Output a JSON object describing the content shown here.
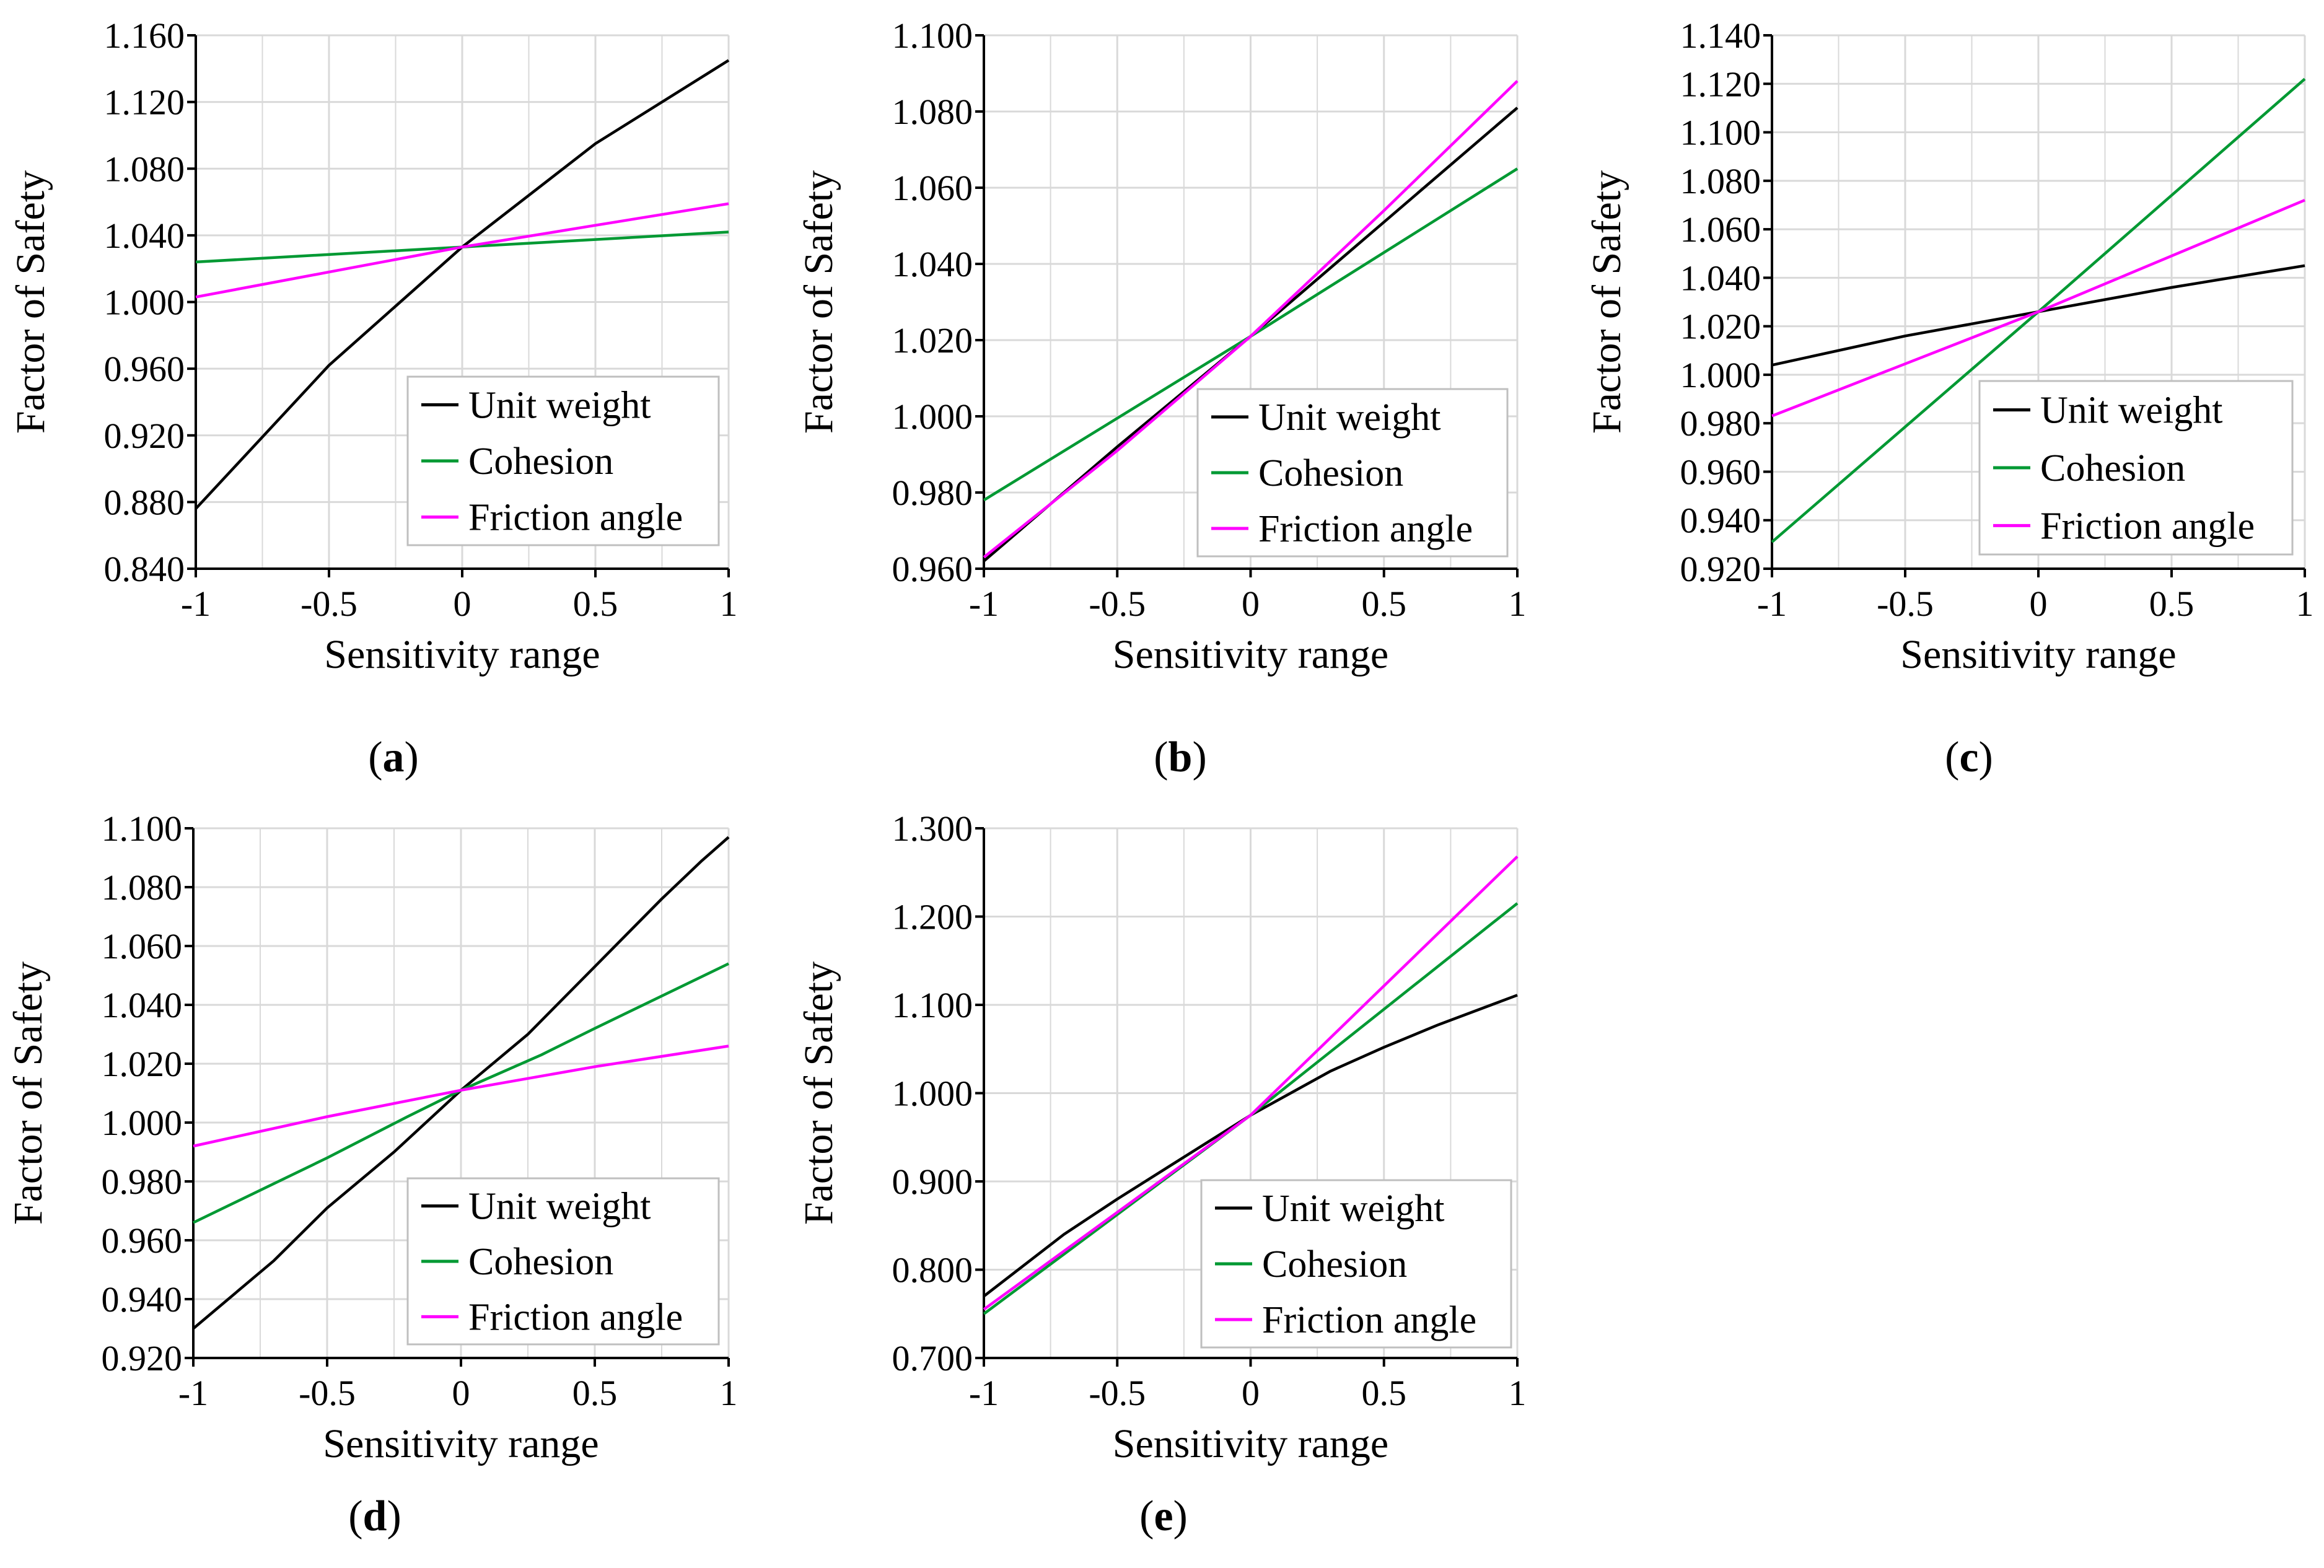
{
  "colors": {
    "unit_weight": "#000000",
    "cohesion": "#009933",
    "friction_angle": "#ff00ff",
    "grid": "#d9d9d9",
    "axis": "#000000"
  },
  "chart_data": [
    {
      "id": "a",
      "label_letter": "a",
      "type": "line",
      "xlabel": "Sensitivity range",
      "ylabel": "Factor of Safety",
      "xlim": [
        -1,
        1
      ],
      "ylim": [
        0.84,
        1.16
      ],
      "xticks": [
        -1,
        -0.5,
        0,
        0.5,
        1
      ],
      "xtick_labels": [
        "-1",
        "-0.5",
        "0",
        "0.5",
        "1"
      ],
      "yticks": [
        0.84,
        0.88,
        0.92,
        0.96,
        1.0,
        1.04,
        1.08,
        1.12,
        1.16
      ],
      "ytick_labels": [
        "0.840",
        "0.880",
        "0.920",
        "0.960",
        "1.000",
        "1.040",
        "1.080",
        "1.120",
        "1.160"
      ],
      "grid": true,
      "legend": "bottom-right",
      "series": [
        {
          "name": "Unit weight",
          "color_key": "unit_weight",
          "x": [
            -1,
            -0.5,
            0,
            0.5,
            1
          ],
          "y": [
            0.876,
            0.962,
            1.033,
            1.095,
            1.145
          ]
        },
        {
          "name": "Cohesion",
          "color_key": "cohesion",
          "x": [
            -1,
            0,
            1
          ],
          "y": [
            1.024,
            1.033,
            1.042
          ]
        },
        {
          "name": "Friction angle",
          "color_key": "friction_angle",
          "x": [
            -1,
            -0.5,
            0,
            0.5,
            1
          ],
          "y": [
            1.003,
            1.018,
            1.033,
            1.046,
            1.059
          ]
        }
      ]
    },
    {
      "id": "b",
      "label_letter": "b",
      "type": "line",
      "xlabel": "Sensitivity range",
      "ylabel": "Factor of Safety",
      "xlim": [
        -1,
        1
      ],
      "ylim": [
        0.96,
        1.1
      ],
      "xticks": [
        -1,
        -0.5,
        0,
        0.5,
        1
      ],
      "xtick_labels": [
        "-1",
        "-0.5",
        "0",
        "0.5",
        "1"
      ],
      "yticks": [
        0.96,
        0.98,
        1.0,
        1.02,
        1.04,
        1.06,
        1.08,
        1.1
      ],
      "ytick_labels": [
        "0.960",
        "0.980",
        "1.000",
        "1.020",
        "1.040",
        "1.060",
        "1.080",
        "1.100"
      ],
      "grid": true,
      "legend": "bottom-right",
      "series": [
        {
          "name": "Unit weight",
          "color_key": "unit_weight",
          "x": [
            -1,
            -0.5,
            0,
            0.5,
            1
          ],
          "y": [
            0.962,
            0.992,
            1.021,
            1.051,
            1.081
          ]
        },
        {
          "name": "Cohesion",
          "color_key": "cohesion",
          "x": [
            -1,
            0,
            1
          ],
          "y": [
            0.978,
            1.021,
            1.065
          ]
        },
        {
          "name": "Friction angle",
          "color_key": "friction_angle",
          "x": [
            -1,
            -0.5,
            0,
            0.5,
            1
          ],
          "y": [
            0.963,
            0.991,
            1.021,
            1.054,
            1.088
          ]
        }
      ]
    },
    {
      "id": "c",
      "label_letter": "c",
      "type": "line",
      "xlabel": "Sensitivity range",
      "ylabel": "Factor of Safety",
      "xlim": [
        -1,
        1
      ],
      "ylim": [
        0.92,
        1.14
      ],
      "xticks": [
        -1,
        -0.5,
        0,
        0.5,
        1
      ],
      "xtick_labels": [
        "-1",
        "-0.5",
        "0",
        "0.5",
        "1"
      ],
      "yticks": [
        0.92,
        0.94,
        0.96,
        0.98,
        1.0,
        1.02,
        1.04,
        1.06,
        1.08,
        1.1,
        1.12,
        1.14
      ],
      "ytick_labels": [
        "0.920",
        "0.940",
        "0.960",
        "0.980",
        "1.000",
        "1.020",
        "1.040",
        "1.060",
        "1.080",
        "1.100",
        "1.120",
        "1.140"
      ],
      "grid": true,
      "legend": "bottom-right",
      "series": [
        {
          "name": "Unit weight",
          "color_key": "unit_weight",
          "x": [
            -1,
            -0.5,
            0,
            0.5,
            1
          ],
          "y": [
            1.004,
            1.016,
            1.026,
            1.036,
            1.045
          ]
        },
        {
          "name": "Cohesion",
          "color_key": "cohesion",
          "x": [
            -1,
            0,
            1
          ],
          "y": [
            0.931,
            1.026,
            1.122
          ]
        },
        {
          "name": "Friction angle",
          "color_key": "friction_angle",
          "x": [
            -1,
            0,
            1
          ],
          "y": [
            0.983,
            1.026,
            1.072
          ]
        }
      ]
    },
    {
      "id": "d",
      "label_letter": "d",
      "type": "line",
      "xlabel": "Sensitivity range",
      "ylabel": "Factor of Safety",
      "xlim": [
        -1,
        1
      ],
      "ylim": [
        0.92,
        1.1
      ],
      "xticks": [
        -1,
        -0.5,
        0,
        0.5,
        1
      ],
      "xtick_labels": [
        "-1",
        "-0.5",
        "0",
        "0.5",
        "1"
      ],
      "yticks": [
        0.92,
        0.94,
        0.96,
        0.98,
        1.0,
        1.02,
        1.04,
        1.06,
        1.08,
        1.1
      ],
      "ytick_labels": [
        "0.920",
        "0.940",
        "0.960",
        "0.980",
        "1.000",
        "1.020",
        "1.040",
        "1.060",
        "1.080",
        "1.100"
      ],
      "grid": true,
      "legend": "bottom-right",
      "series": [
        {
          "name": "Unit weight",
          "color_key": "unit_weight",
          "x": [
            -1,
            -0.7,
            -0.5,
            -0.25,
            0,
            0.25,
            0.5,
            0.75,
            0.9,
            1
          ],
          "y": [
            0.93,
            0.953,
            0.971,
            0.99,
            1.011,
            1.03,
            1.053,
            1.076,
            1.089,
            1.097
          ]
        },
        {
          "name": "Cohesion",
          "color_key": "cohesion",
          "x": [
            -1,
            -0.5,
            -0.2,
            0,
            0.3,
            0.5,
            1
          ],
          "y": [
            0.966,
            0.988,
            1.002,
            1.011,
            1.023,
            1.032,
            1.054
          ]
        },
        {
          "name": "Friction angle",
          "color_key": "friction_angle",
          "x": [
            -1,
            -0.5,
            0,
            0.5,
            1
          ],
          "y": [
            0.992,
            1.002,
            1.011,
            1.019,
            1.026
          ]
        }
      ]
    },
    {
      "id": "e",
      "label_letter": "e",
      "type": "line",
      "xlabel": "Sensitivity range",
      "ylabel": "Factor of Safety",
      "xlim": [
        -1,
        1
      ],
      "ylim": [
        0.7,
        1.3
      ],
      "xticks": [
        -1,
        -0.5,
        0,
        0.5,
        1
      ],
      "xtick_labels": [
        "-1",
        "-0.5",
        "0",
        "0.5",
        "1"
      ],
      "yticks": [
        0.7,
        0.8,
        0.9,
        1.0,
        1.1,
        1.2,
        1.3
      ],
      "ytick_labels": [
        "0.700",
        "0.800",
        "0.900",
        "1.000",
        "1.100",
        "1.200",
        "1.300"
      ],
      "grid": true,
      "legend": "bottom-right",
      "series": [
        {
          "name": "Unit weight",
          "color_key": "unit_weight",
          "x": [
            -1,
            -0.7,
            -0.5,
            -0.3,
            0,
            0.3,
            0.5,
            0.7,
            1
          ],
          "y": [
            0.77,
            0.84,
            0.88,
            0.918,
            0.975,
            1.025,
            1.052,
            1.077,
            1.111
          ]
        },
        {
          "name": "Cohesion",
          "color_key": "cohesion",
          "x": [
            -1,
            0,
            1
          ],
          "y": [
            0.75,
            0.975,
            1.215
          ]
        },
        {
          "name": "Friction angle",
          "color_key": "friction_angle",
          "x": [
            -1,
            0,
            1
          ],
          "y": [
            0.755,
            0.975,
            1.268
          ]
        }
      ]
    }
  ]
}
